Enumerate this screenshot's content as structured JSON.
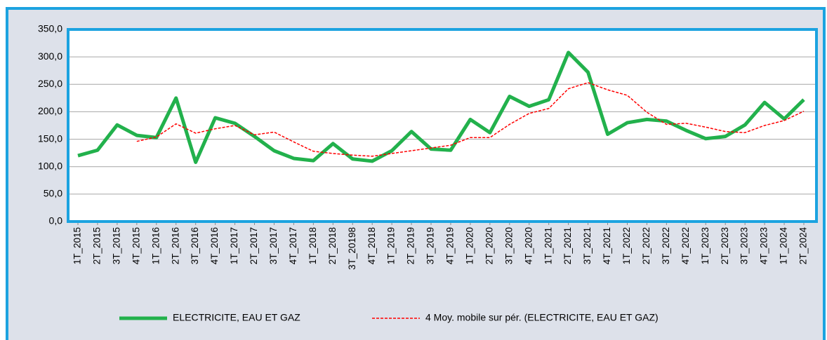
{
  "chart_data": {
    "type": "line",
    "categories": [
      "1T_2015",
      "2T_2015",
      "3T_2015",
      "4T_2015",
      "1T_2016",
      "2T_2016",
      "3T_2016",
      "4T_2016",
      "1T_2017",
      "2T_2017",
      "3T_2017",
      "4T_2017",
      "1T_2018",
      "2T_2018",
      "3T_20198",
      "4T_2018",
      "1T_2019",
      "2T_2019",
      "3T_2019",
      "4T_2019",
      "1T_2020",
      "2T_2020",
      "3T_2020",
      "4T_2020",
      "1T_2021",
      "2T_2021",
      "3T_2021",
      "4T_2021",
      "1T_2022",
      "2T_2022",
      "3T_2022",
      "4T_2022",
      "1T_2023",
      "2T_2023",
      "3T_2023",
      "4T_2023",
      "1T_2024",
      "2T_2024"
    ],
    "series": [
      {
        "name": "ELECTRICITE, EAU ET GAZ",
        "color": "#22b14c",
        "style": "solid",
        "values": [
          120,
          130,
          176,
          157,
          153,
          225,
          108,
          189,
          179,
          155,
          129,
          115,
          111,
          142,
          114,
          110,
          129,
          164,
          132,
          130,
          186,
          162,
          228,
          210,
          222,
          308,
          272,
          159,
          180,
          186,
          183,
          166,
          151,
          155,
          176,
          217,
          187,
          222
        ]
      },
      {
        "name": "4 Moy. mobile sur pér. (ELECTRICITE, EAU ET GAZ)",
        "color": "#ff0000",
        "style": "dashed",
        "values": [
          null,
          null,
          null,
          146,
          154,
          178,
          161,
          169,
          175,
          158,
          163,
          145,
          128,
          124,
          121,
          119,
          124,
          129,
          134,
          139,
          153,
          153,
          177,
          197,
          206,
          242,
          253,
          240,
          230,
          199,
          177,
          179,
          172,
          164,
          162,
          175,
          184,
          201
        ]
      }
    ],
    "ylim": [
      0,
      350
    ],
    "yticks": [
      {
        "value": 0,
        "label": "0,0"
      },
      {
        "value": 50,
        "label": "50,0"
      },
      {
        "value": 100,
        "label": "100,0"
      },
      {
        "value": 150,
        "label": "150,0"
      },
      {
        "value": 200,
        "label": "200,0"
      },
      {
        "value": 250,
        "label": "250,0"
      },
      {
        "value": 300,
        "label": "300,0"
      },
      {
        "value": 350,
        "label": "350,0"
      }
    ],
    "grid": true,
    "legend": "bottom"
  }
}
